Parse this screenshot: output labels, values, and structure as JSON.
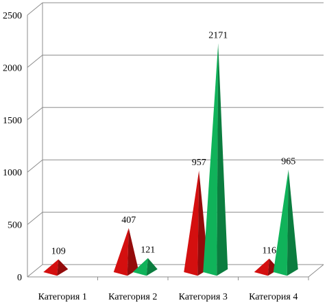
{
  "chart_data": {
    "type": "bar",
    "shape": "pyramid-3d",
    "categories": [
      "Категория 1",
      "Категория 2",
      "Категория 3",
      "Категория 4"
    ],
    "series": [
      {
        "values": [
          109,
          407,
          957,
          116
        ],
        "color": "#d40f0f"
      },
      {
        "values": [
          null,
          121,
          2171,
          965
        ],
        "color": "#10b35a"
      }
    ],
    "ylim": [
      0,
      2500
    ],
    "yticks": [
      0,
      500,
      1000,
      1500,
      2000,
      2500
    ],
    "grid": true,
    "legend": "none"
  }
}
